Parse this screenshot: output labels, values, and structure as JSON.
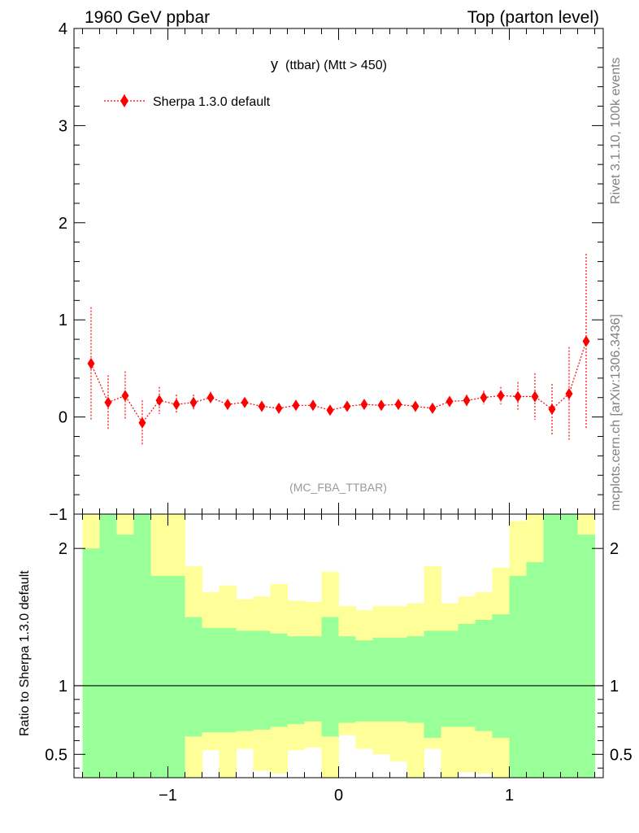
{
  "header": {
    "left_title": "1960 GeV ppbar",
    "right_title": "Top (parton level)"
  },
  "side_labels": {
    "rivet": "Rivet 3.1.10,  100k events",
    "mcplots": "mcplots.cern.ch [arXiv:1306.3436]"
  },
  "chart_data": {
    "type": "scatter",
    "title_main": "y",
    "title_sub": "(ttbar) (Mtt > 450)",
    "analysis": "(MC_FBA_TTBAR)",
    "legend": {
      "label": "Sherpa 1.3.0 default",
      "position": "top-left"
    },
    "xlim": [
      -1.55,
      1.55
    ],
    "ylim": [
      -1,
      4
    ],
    "x_ticks": [
      -1,
      0,
      1
    ],
    "x_tick_labels": [
      "−1",
      "0",
      "1"
    ],
    "y_ticks": [
      -1,
      0,
      1,
      2,
      3,
      4
    ],
    "y_tick_labels": [
      "−1",
      "0",
      "1",
      "2",
      "3",
      "4"
    ],
    "series": [
      {
        "name": "Sherpa 1.3.0 default",
        "color": "#ff0000",
        "x": [
          -1.45,
          -1.35,
          -1.25,
          -1.15,
          -1.05,
          -0.95,
          -0.85,
          -0.75,
          -0.65,
          -0.55,
          -0.45,
          -0.35,
          -0.25,
          -0.15,
          -0.05,
          0.05,
          0.15,
          0.25,
          0.35,
          0.45,
          0.55,
          0.65,
          0.75,
          0.85,
          0.95,
          1.05,
          1.15,
          1.25,
          1.35,
          1.45
        ],
        "y": [
          0.55,
          0.15,
          0.22,
          -0.06,
          0.17,
          0.13,
          0.15,
          0.2,
          0.13,
          0.15,
          0.11,
          0.09,
          0.12,
          0.12,
          0.07,
          0.11,
          0.13,
          0.12,
          0.13,
          0.11,
          0.09,
          0.16,
          0.17,
          0.2,
          0.22,
          0.21,
          0.21,
          0.08,
          0.24,
          0.78
        ],
        "err": [
          0.58,
          0.28,
          0.25,
          0.23,
          0.14,
          0.1,
          0.08,
          0.06,
          0.05,
          0.04,
          0.04,
          0.03,
          0.03,
          0.03,
          0.03,
          0.03,
          0.03,
          0.03,
          0.03,
          0.04,
          0.04,
          0.05,
          0.06,
          0.07,
          0.09,
          0.15,
          0.24,
          0.26,
          0.48,
          0.9
        ]
      }
    ],
    "ratio": {
      "ylabel": "Ratio to Sherpa 1.3.0 default",
      "ylim": [
        0.33,
        2.25
      ],
      "y_ticks": [
        0.5,
        1,
        2
      ],
      "y_tick_labels": [
        "0.5",
        "1",
        "2"
      ],
      "reference": 1,
      "bin_edges": [
        -1.5,
        -1.4,
        -1.3,
        -1.2,
        -1.1,
        -1.0,
        -0.9,
        -0.8,
        -0.7,
        -0.6,
        -0.5,
        -0.4,
        -0.3,
        -0.2,
        -0.1,
        0.0,
        0.1,
        0.2,
        0.3,
        0.4,
        0.5,
        0.6,
        0.7,
        0.8,
        0.9,
        1.0,
        1.1,
        1.2,
        1.3,
        1.4,
        1.5
      ],
      "band_1sigma_upper": [
        2.0,
        2.3,
        2.1,
        2.3,
        1.8,
        1.8,
        1.5,
        1.42,
        1.42,
        1.4,
        1.4,
        1.38,
        1.36,
        1.36,
        1.5,
        1.36,
        1.33,
        1.35,
        1.35,
        1.36,
        1.4,
        1.4,
        1.45,
        1.48,
        1.52,
        1.8,
        1.9,
        2.3,
        2.3,
        2.1
      ],
      "band_1sigma_lower": [
        0.33,
        0.33,
        0.33,
        0.33,
        0.33,
        0.33,
        0.63,
        0.66,
        0.66,
        0.67,
        0.68,
        0.7,
        0.72,
        0.74,
        0.63,
        0.73,
        0.74,
        0.74,
        0.74,
        0.73,
        0.62,
        0.7,
        0.7,
        0.67,
        0.62,
        0.33,
        0.33,
        0.33,
        0.33,
        0.33
      ],
      "band_2sigma_upper": [
        2.3,
        2.3,
        2.3,
        2.3,
        2.3,
        2.3,
        1.87,
        1.68,
        1.73,
        1.63,
        1.65,
        1.74,
        1.62,
        1.61,
        1.83,
        1.58,
        1.55,
        1.58,
        1.58,
        1.6,
        1.87,
        1.6,
        1.65,
        1.68,
        1.86,
        2.2,
        2.3,
        2.3,
        2.3,
        2.3
      ],
      "band_2sigma_lower": [
        0.33,
        0.33,
        0.33,
        0.33,
        0.33,
        0.33,
        0.33,
        0.53,
        0.33,
        0.54,
        0.38,
        0.36,
        0.53,
        0.55,
        0.33,
        0.64,
        0.54,
        0.5,
        0.45,
        0.33,
        0.54,
        0.33,
        0.37,
        0.36,
        0.33,
        0.33,
        0.33,
        0.33,
        0.33,
        0.33
      ]
    },
    "colors": {
      "band_1sigma": "#99ff99",
      "band_2sigma": "#ffff99",
      "marker": "#ff0000",
      "side_text": "#808080"
    },
    "grid": false
  }
}
